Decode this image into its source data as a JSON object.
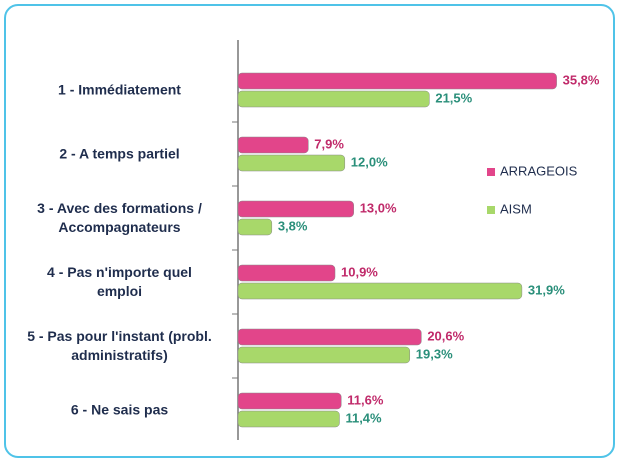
{
  "chart_data": {
    "type": "bar",
    "orientation": "horizontal",
    "categories": [
      "1 - Immédiatement",
      "2 - A temps partiel",
      "3 - Avec des formations /\nAccompagnateurs",
      "4 - Pas n'importe quel\nemploi",
      "5 - Pas pour l'instant (probl.\nadministratifs)",
      "6 - Ne sais pas"
    ],
    "series": [
      {
        "name": "ARRAGEOIS",
        "color": "#e2458a",
        "label_color": "#c02a6a",
        "values": [
          35.8,
          7.9,
          13.0,
          10.9,
          20.6,
          11.6
        ],
        "value_labels": [
          "35,8%",
          "7,9%",
          "13,0%",
          "10,9%",
          "20,6%",
          "11,6%"
        ]
      },
      {
        "name": "AISM",
        "color": "#a8d86a",
        "label_color": "#2a8f7a",
        "values": [
          21.5,
          12.0,
          3.8,
          31.9,
          19.3,
          11.4
        ],
        "value_labels": [
          "21,5%",
          "12,0%",
          "3,8%",
          "31,9%",
          "19,3%",
          "11,4%"
        ]
      }
    ],
    "xlim": [
      0,
      40
    ],
    "legend": "right"
  }
}
